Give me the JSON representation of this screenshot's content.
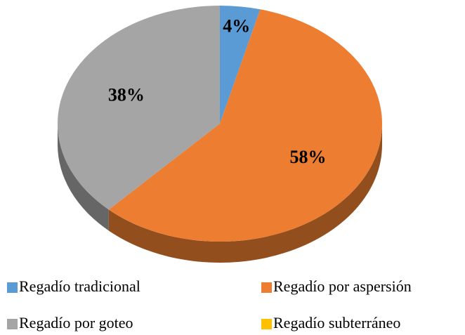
{
  "chart_data": {
    "type": "pie",
    "categories": [
      "Regadío tradicional",
      "Regadío por aspersión",
      "Regadío por goteo",
      "Regadío subterráneo"
    ],
    "values": [
      4,
      58,
      38,
      0
    ],
    "value_labels": [
      "4%",
      "58%",
      "38%",
      null
    ],
    "colors": [
      "#5b9bd5",
      "#ed7d31",
      "#a5a5a5",
      "#ffc000"
    ],
    "legend": "bottom"
  }
}
